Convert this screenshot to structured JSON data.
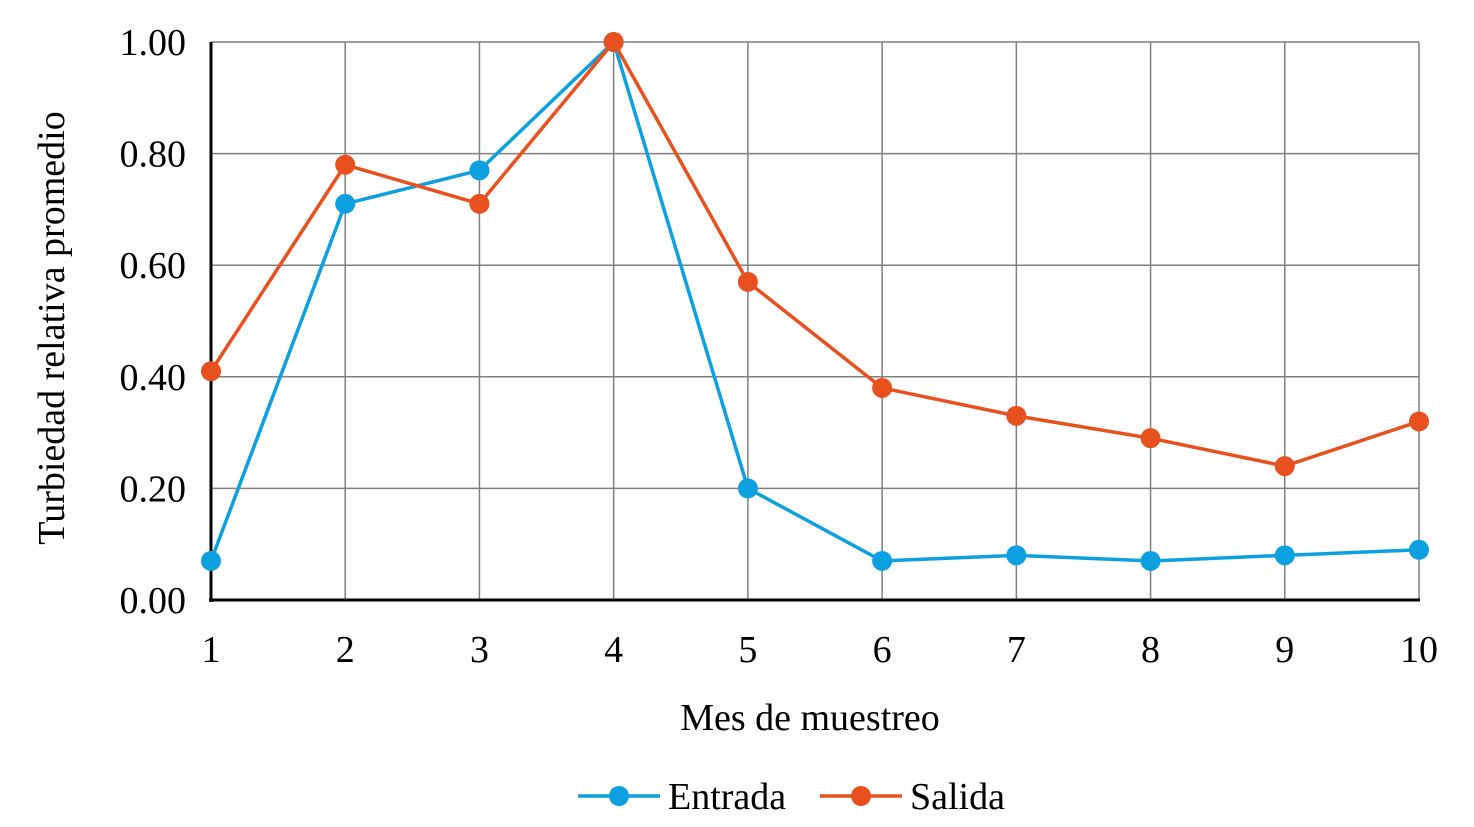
{
  "chart_data": {
    "type": "line",
    "xlabel": "Mes de muestreo",
    "ylabel": "Turbiedad relativa promedio",
    "x": [
      1,
      2,
      3,
      4,
      5,
      6,
      7,
      8,
      9,
      10
    ],
    "xlim": [
      1,
      10
    ],
    "ylim": [
      0,
      1
    ],
    "y_ticks": [
      "0.00",
      "0.20",
      "0.40",
      "0.60",
      "0.80",
      "1.00"
    ],
    "x_ticks": [
      "1",
      "2",
      "3",
      "4",
      "5",
      "6",
      "7",
      "8",
      "9",
      "10"
    ],
    "grid": true,
    "legend_position": "bottom",
    "series": [
      {
        "name": "Entrada",
        "color": "#0da0e0",
        "values": [
          0.07,
          0.71,
          0.77,
          1.0,
          0.2,
          0.07,
          0.08,
          0.07,
          0.08,
          0.09
        ]
      },
      {
        "name": "Salida",
        "color": "#e8501e",
        "values": [
          0.41,
          0.78,
          0.71,
          1.0,
          0.57,
          0.38,
          0.33,
          0.29,
          0.24,
          0.32
        ]
      }
    ]
  }
}
